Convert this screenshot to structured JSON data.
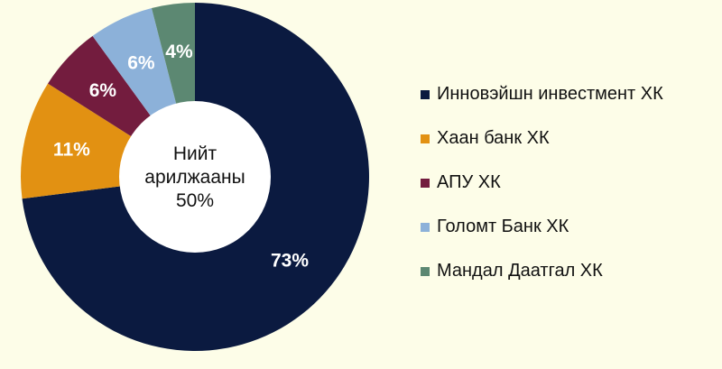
{
  "chart_data": {
    "type": "pie",
    "donut": true,
    "center_label": {
      "line1": "Нийт",
      "line2": "арилжааны",
      "line3": "50%"
    },
    "legend_position": "right",
    "slices": [
      {
        "label": "Инновэйшн инвестмент ХК",
        "value": 73,
        "display": "73%",
        "color": "#0b1a40"
      },
      {
        "label": "Хаан банк ХК",
        "value": 11,
        "display": "11%",
        "color": "#e29112"
      },
      {
        "label": "АПУ ХК",
        "value": 6,
        "display": "6%",
        "color": "#731c3e"
      },
      {
        "label": "Голомт Банк ХК",
        "value": 6,
        "display": "6%",
        "color": "#8cb1d9"
      },
      {
        "label": "Мандал Даатгал ХК",
        "value": 4,
        "display": "4%",
        "color": "#5c8872"
      }
    ]
  }
}
